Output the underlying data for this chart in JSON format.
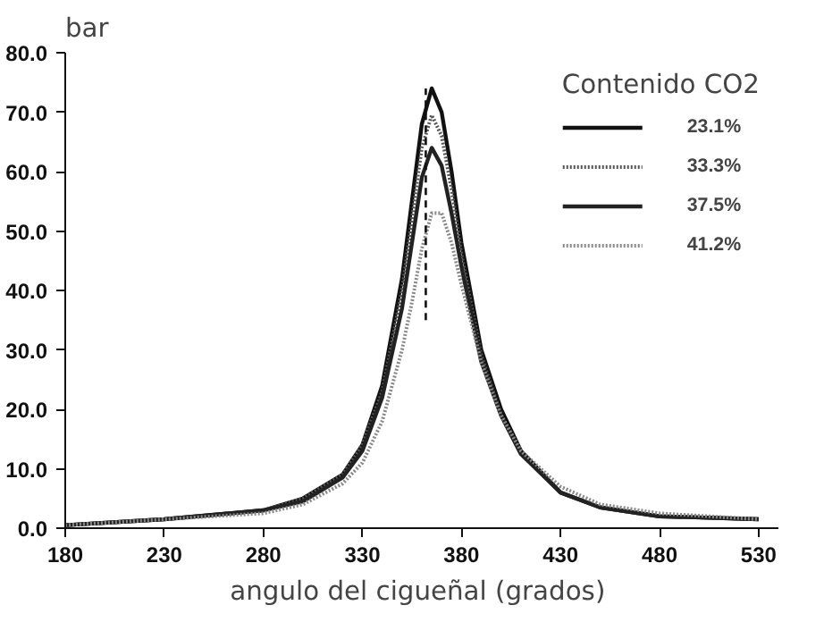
{
  "chart_data": {
    "type": "line",
    "xlabel": "angulo del cigueñal  (grados)",
    "ylabel": "bar",
    "legend_title": "Contenido CO2",
    "legend": "top right",
    "grid": false,
    "marker": "none",
    "x": [
      180,
      230,
      280,
      300,
      320,
      330,
      340,
      350,
      355,
      360,
      365,
      370,
      375,
      380,
      390,
      400,
      410,
      430,
      450,
      480,
      530
    ],
    "xlim": [
      180,
      540
    ],
    "ylim": [
      0,
      80
    ],
    "xticks": [
      180,
      230,
      280,
      330,
      380,
      430,
      480,
      530
    ],
    "yticks": [
      {
        "value": 0,
        "label": "0.0"
      },
      {
        "value": 10,
        "label": "10.0"
      },
      {
        "value": 20,
        "label": "20.0"
      },
      {
        "value": 30,
        "label": "30.0"
      },
      {
        "value": 40,
        "label": "40.0"
      },
      {
        "value": 50,
        "label": "50.0"
      },
      {
        "value": 60,
        "label": "60.0"
      },
      {
        "value": 70,
        "label": "70.0"
      },
      {
        "value": 80,
        "label": "80.0"
      }
    ],
    "series": [
      {
        "name": "23.1%",
        "color": "#111111",
        "line_style": "solid",
        "values": [
          0.5,
          1.5,
          3,
          5,
          9,
          14,
          24,
          42,
          55,
          68,
          74,
          70,
          60,
          48,
          30,
          20,
          13,
          6,
          3.5,
          2,
          1.5
        ]
      },
      {
        "name": "33.3%",
        "color": "#555555",
        "line_style": "dotted",
        "values": [
          0.5,
          1.5,
          3,
          5,
          9,
          14,
          23,
          40,
          52,
          64,
          69.5,
          66,
          57,
          46,
          29,
          19,
          12.5,
          6,
          3.5,
          2,
          1.5
        ]
      },
      {
        "name": "37.5%",
        "color": "#222222",
        "line_style": "solid",
        "values": [
          0.5,
          1.5,
          3,
          4.5,
          8.5,
          13,
          22,
          37,
          48,
          59,
          64,
          61,
          53,
          44,
          28,
          19,
          12.5,
          6,
          3.5,
          2,
          1.5
        ]
      },
      {
        "name": "41.2%",
        "color": "#888888",
        "line_style": "dotted",
        "values": [
          0.5,
          1.5,
          2.5,
          4,
          7.5,
          11,
          18,
          30,
          38,
          47,
          53,
          53,
          48,
          41,
          28,
          19,
          13,
          7,
          4,
          2.5,
          1.5
        ]
      },
      {
        "color": "#111111",
        "line_style": "dashed",
        "x": [
          362,
          362
        ],
        "values": [
          35,
          74
        ]
      }
    ]
  }
}
